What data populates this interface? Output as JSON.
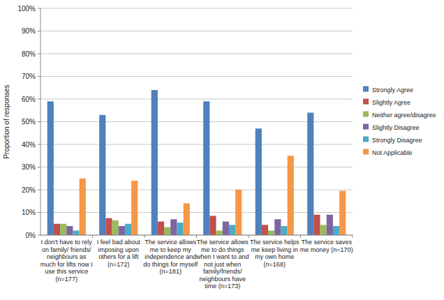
{
  "chart_data": {
    "type": "bar",
    "y_label": "Proportion of responses",
    "categories": [
      "I don't have to rely on family/ friends/ neighbours as much for lifts now I use this service (n=177)",
      "I feel bad about imposing upon others for a lift (n=172)",
      "The service allows me to keep my independence and do things for myself (n=181)",
      "The service allows me to do things when I want to and not just when family/friends/ neighbours have time (n=173)",
      "The service helps me keep living in my own home (n=168)",
      "The service saves me money (n=170)"
    ],
    "series": [
      {
        "name": "Strongly Agree",
        "color": "#4f81bd",
        "values": [
          59,
          53,
          64,
          59,
          47,
          54
        ]
      },
      {
        "name": "Slightly Agree",
        "color": "#c0504d",
        "values": [
          5,
          7.5,
          6,
          8.5,
          4.5,
          9
        ]
      },
      {
        "name": "Neither agree/disagree",
        "color": "#9bbb59",
        "values": [
          5,
          6.5,
          3.5,
          2,
          2,
          4.5
        ]
      },
      {
        "name": "Slightly Disagree",
        "color": "#8064a2",
        "values": [
          4,
          4,
          7,
          6,
          7,
          9
        ]
      },
      {
        "name": "Strongly Disagree",
        "color": "#4bacc6",
        "values": [
          2,
          5,
          5.5,
          4.5,
          4,
          4
        ]
      },
      {
        "name": "Not Applicable",
        "color": "#f79646",
        "values": [
          25,
          24,
          14,
          20,
          35,
          19.5
        ]
      }
    ],
    "ylim": [
      0,
      100
    ],
    "yticks": [
      {
        "value": 0,
        "label": "0%"
      },
      {
        "value": 10,
        "label": "10%"
      },
      {
        "value": 20,
        "label": "20%"
      },
      {
        "value": 30,
        "label": "30%"
      },
      {
        "value": 40,
        "label": "40%"
      },
      {
        "value": 50,
        "label": "50%"
      },
      {
        "value": 60,
        "label": "60%"
      },
      {
        "value": 70,
        "label": "70%"
      },
      {
        "value": 80,
        "label": "80%"
      },
      {
        "value": 90,
        "label": "90%"
      },
      {
        "value": 100,
        "label": "100%"
      }
    ],
    "grid": true,
    "legend": "right"
  }
}
